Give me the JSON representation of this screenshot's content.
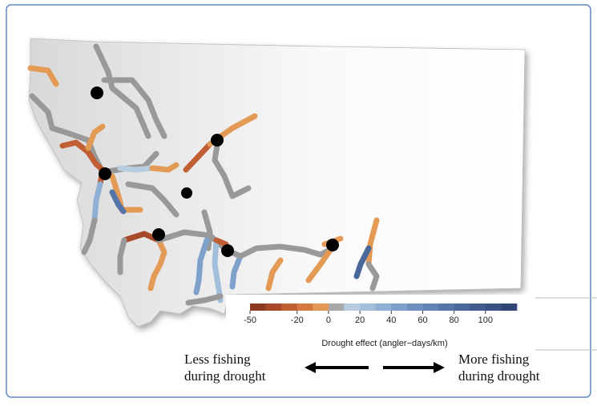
{
  "legend": {
    "title": "Drought effect (angler−days/km)",
    "range": [
      -50,
      120
    ],
    "ticks": [
      -50,
      -20,
      0,
      20,
      40,
      60,
      80,
      100
    ],
    "colors": [
      "#8c3b22",
      "#a8492a",
      "#c05e34",
      "#d47a40",
      "#e39a54",
      "#a9a9a9",
      "#b8cde0",
      "#a3bedb",
      "#8fb0d4",
      "#7ea1cb",
      "#6e91c0",
      "#6183b5",
      "#5575a8",
      "#4b689b",
      "#425c8e",
      "#3a5182",
      "#324676"
    ]
  },
  "notes": {
    "left": [
      "Less fishing",
      "during drought"
    ],
    "right": [
      "More fishing",
      "during drought"
    ]
  }
}
